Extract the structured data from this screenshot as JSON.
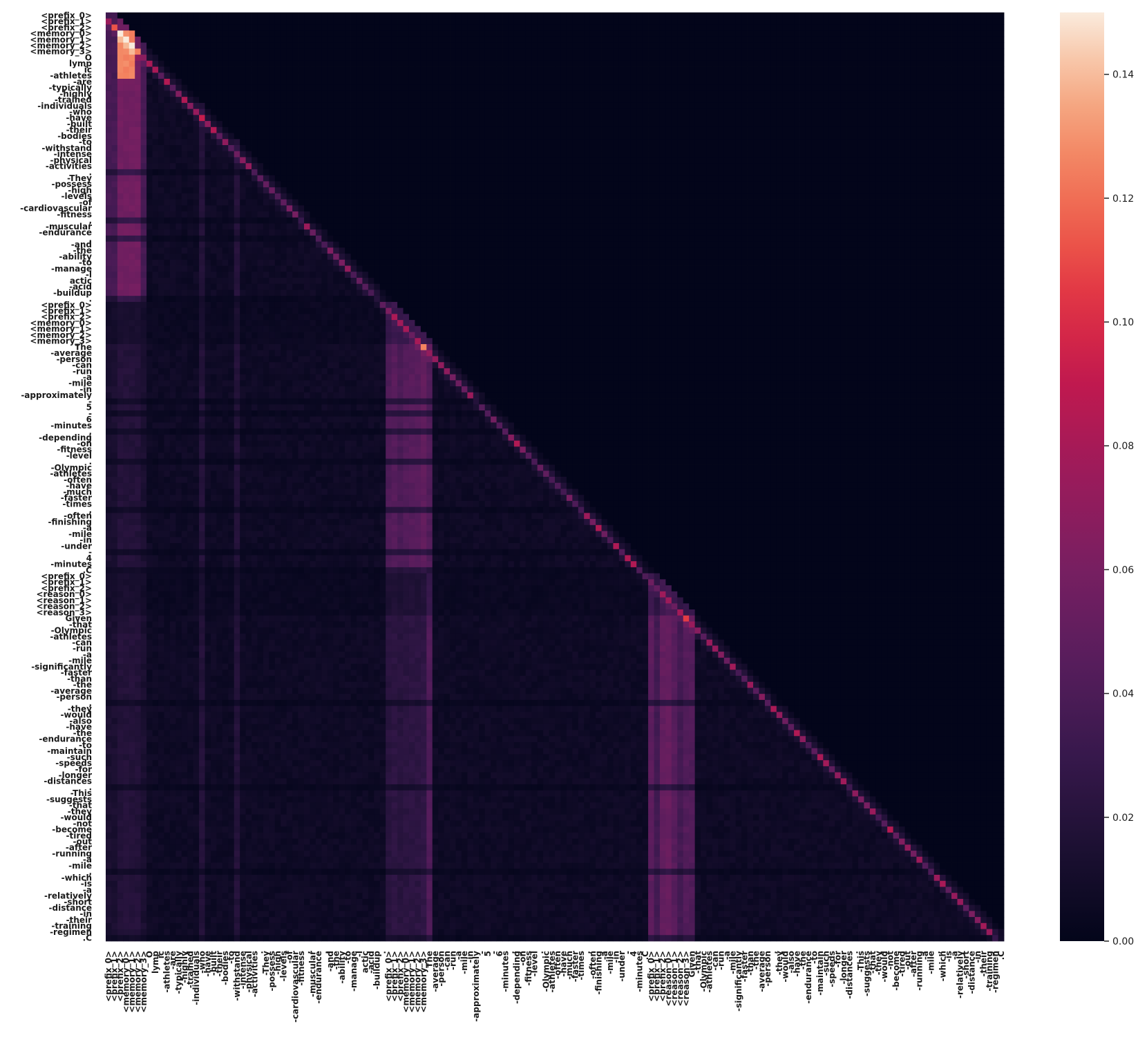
{
  "chart_data": {
    "type": "heatmap",
    "title": "",
    "xlabel": "",
    "ylabel": "",
    "colormap": "rocket",
    "mask": "upper-triangle",
    "value_range": [
      0.0,
      0.15
    ],
    "colorbar": {
      "ticks": [
        "0.00",
        "0.02",
        "0.04",
        "0.06",
        "0.08",
        "0.10",
        "0.12",
        "0.14"
      ],
      "tick_values": [
        0.0,
        0.02,
        0.04,
        0.06,
        0.08,
        0.1,
        0.12,
        0.14
      ],
      "placement": "right"
    },
    "tokens": [
      "<prefix_0>",
      "<prefix_1>",
      "<prefix_2>",
      "<memory_0>",
      "<memory_1>",
      "<memory_2>",
      "<memory_3>",
      "O",
      "lymp",
      "ic",
      "-athletes",
      "-are",
      "-typically",
      "-highly",
      "-trained",
      "-individuals",
      "-who",
      "-have",
      "-built",
      "-their",
      "-bodies",
      "-to",
      "-withstand",
      "-intense",
      "-physical",
      "-activities",
      ".",
      "-They",
      "-possess",
      "-high",
      "-levels",
      "-of",
      "-cardiovascular",
      "-fitness",
      ",",
      "-muscular",
      "-endurance",
      ",",
      "-and",
      "-the",
      "-ability",
      "-to",
      "-manage",
      "-l",
      "actic",
      "-acid",
      "-buildup",
      ".",
      "<prefix_0>",
      "<prefix_1>",
      "<prefix_2>",
      "<memory_0>",
      "<memory_1>",
      "<memory_2>",
      "<memory_3>",
      "The",
      "-average",
      "-person",
      "-can",
      "-run",
      "-a",
      "-mile",
      "-in",
      "-approximately",
      "-",
      "5",
      "-",
      "6",
      "-minutes",
      ",",
      "-depending",
      "-on",
      "-fitness",
      "-level",
      ".",
      "-Olympic",
      "-athletes",
      "-often",
      "-have",
      "-much",
      "-faster",
      "-times",
      ",",
      "-often",
      "-finishing",
      "-a",
      "-mile",
      "-in",
      "-under",
      "-",
      "4",
      "-minutes",
      ".C",
      "<prefix_0>",
      "<prefix_1>",
      "<prefix_2>",
      "<reason_0>",
      "<reason_1>",
      "<reason_2>",
      "<reason_3>",
      "Given",
      "-that",
      "-Olympic",
      "-athletes",
      "-can",
      "-run",
      "-a",
      "-mile",
      "-significantly",
      "-faster",
      "-than",
      "-the",
      "-average",
      "-person",
      ",",
      "-they",
      "-would",
      "-also",
      "-have",
      "-the",
      "-endurance",
      "-to",
      "-maintain",
      "-such",
      "-speeds",
      "-for",
      "-longer",
      "-distances",
      ".",
      "-This",
      "-suggests",
      "-that",
      "-they",
      "-would",
      "-not",
      "-become",
      "-tired",
      "-out",
      "-after",
      "-running",
      "-a",
      "-mile",
      ",",
      "-which",
      "-is",
      "-a",
      "-relatively",
      "-short",
      "-distance",
      "-in",
      "-their",
      "-training",
      "-regimen",
      ".C"
    ]
  }
}
